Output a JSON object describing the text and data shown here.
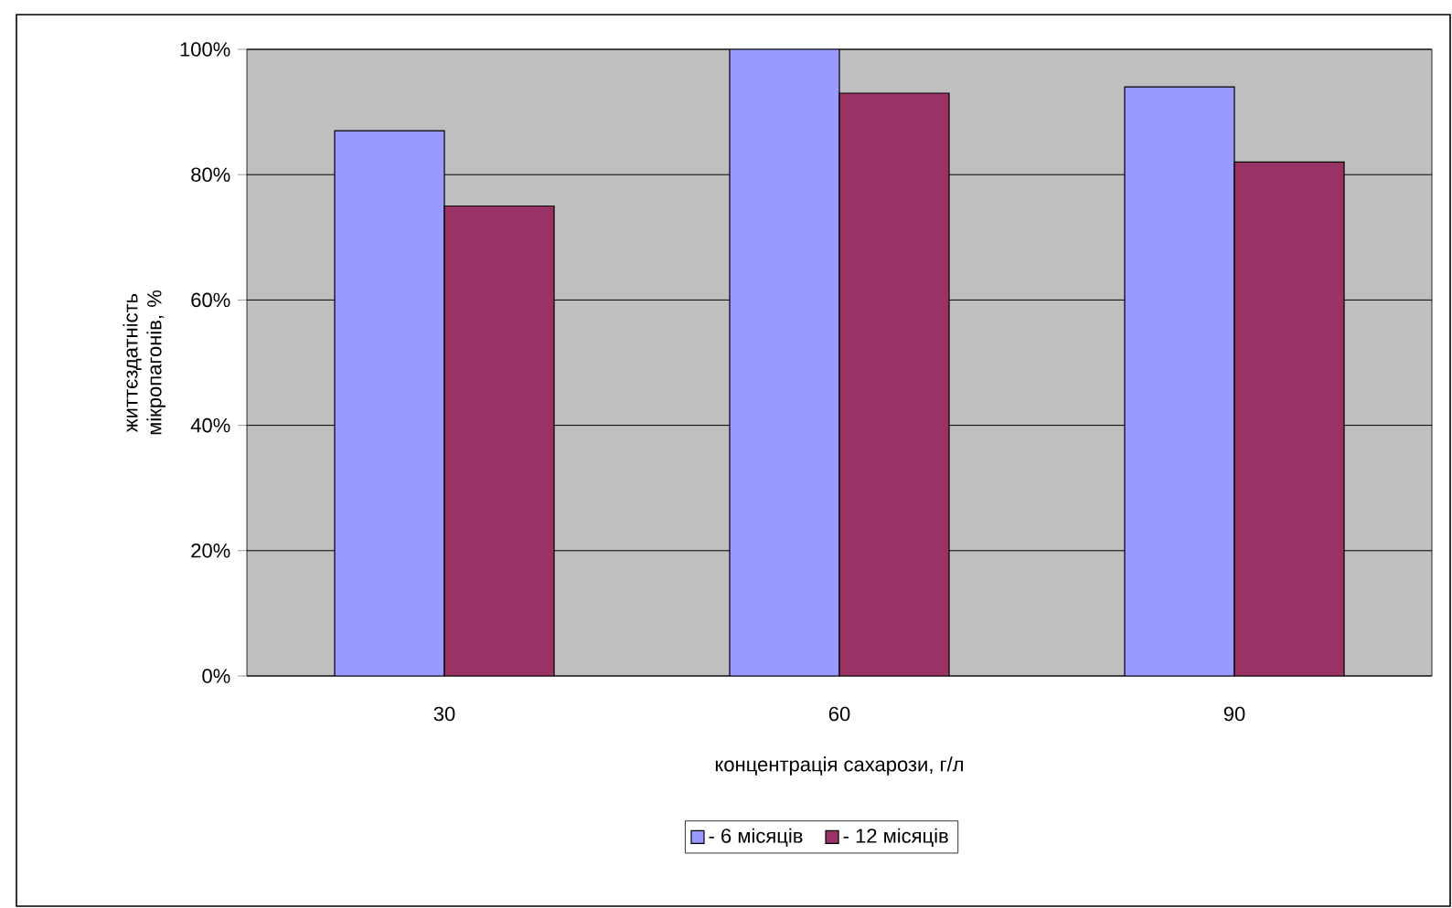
{
  "chart_data": {
    "type": "bar",
    "xlabel": "концентрація сахарози, г/л",
    "ylabel": "життєздатність мікропагонів, %",
    "categories": [
      "30",
      "60",
      "90"
    ],
    "series": [
      {
        "name": "- 6 місяців",
        "color": "#9999ff",
        "values": [
          87,
          100,
          94
        ]
      },
      {
        "name": "- 12 місяців",
        "color": "#993366",
        "values": [
          75,
          93,
          82
        ]
      }
    ],
    "ylim": [
      0,
      100
    ],
    "yticks": [
      {
        "value": 0,
        "label": "0%"
      },
      {
        "value": 20,
        "label": "20%"
      },
      {
        "value": 40,
        "label": "40%"
      },
      {
        "value": 60,
        "label": "60%"
      },
      {
        "value": 80,
        "label": "80%"
      },
      {
        "value": 100,
        "label": "100%"
      }
    ],
    "grid": "y",
    "legend": "bottom"
  }
}
